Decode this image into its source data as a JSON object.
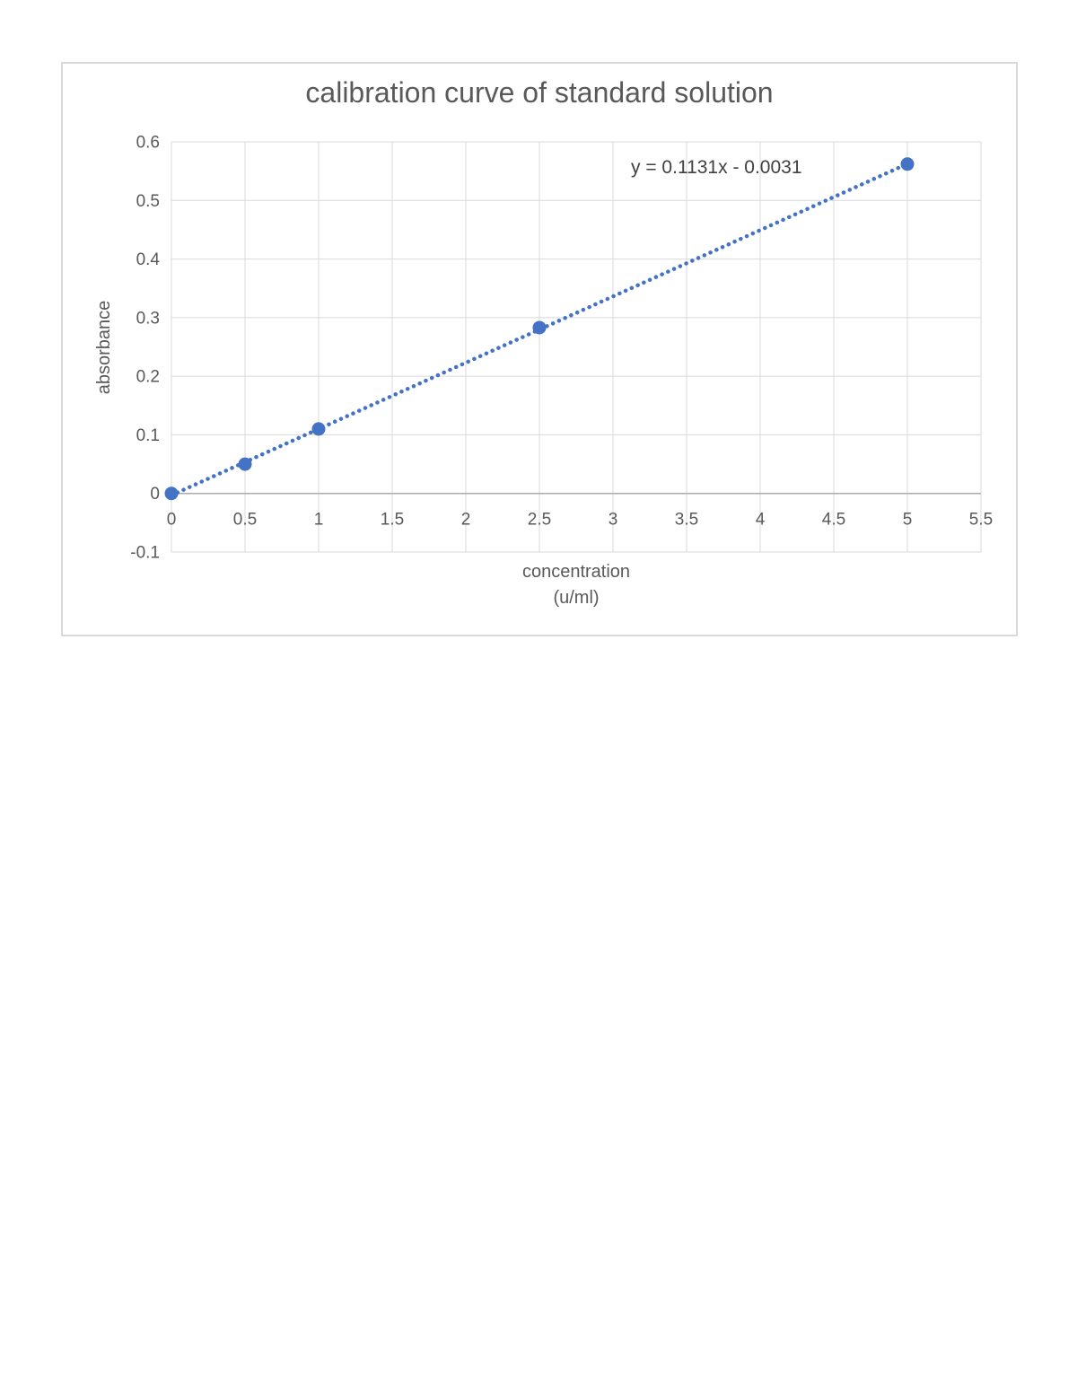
{
  "chart": {
    "title": "calibration curve of standard solution",
    "equation_label": "y = 0.1131x - 0.0031",
    "x_axis_title_line1": "concentration",
    "x_axis_title_line2": "(u/ml)",
    "y_axis_title": "absorbance"
  },
  "chart_data": {
    "type": "scatter",
    "title": "calibration curve of standard solution",
    "xlabel": "concentration (u/ml)",
    "ylabel": "absorbance",
    "x": [
      0,
      0.5,
      1,
      2.5,
      5
    ],
    "y": [
      0,
      0.05,
      0.11,
      0.283,
      0.562
    ],
    "trendline": {
      "type": "linear",
      "slope": 0.1131,
      "intercept": -0.0031,
      "equation": "y = 0.1131x - 0.0031",
      "style": "dotted",
      "x_start": 0,
      "x_end": 5
    },
    "xlim": [
      0,
      5.5
    ],
    "ylim": [
      -0.1,
      0.6
    ],
    "x_ticks": [
      0,
      0.5,
      1,
      1.5,
      2,
      2.5,
      3,
      3.5,
      4,
      4.5,
      5,
      5.5
    ],
    "y_ticks": [
      -0.1,
      0,
      0.1,
      0.2,
      0.3,
      0.4,
      0.5,
      0.6
    ],
    "x_tick_labels": [
      "0",
      "0.5",
      "1",
      "1.5",
      "2",
      "2.5",
      "3",
      "3.5",
      "4",
      "4.5",
      "5",
      "5.5"
    ],
    "y_tick_labels": [
      "-0.1",
      "0",
      "0.1",
      "0.2",
      "0.3",
      "0.4",
      "0.5",
      "0.6"
    ],
    "grid": true,
    "legend": false,
    "colors": {
      "marker": "#4472C4",
      "trendline": "#4472C4",
      "gridline": "#D9D9D9",
      "zero_axis": "#ABABAB",
      "tick_text": "#595959",
      "equation_text": "#404040",
      "chart_border": "#D9D9D9"
    }
  }
}
